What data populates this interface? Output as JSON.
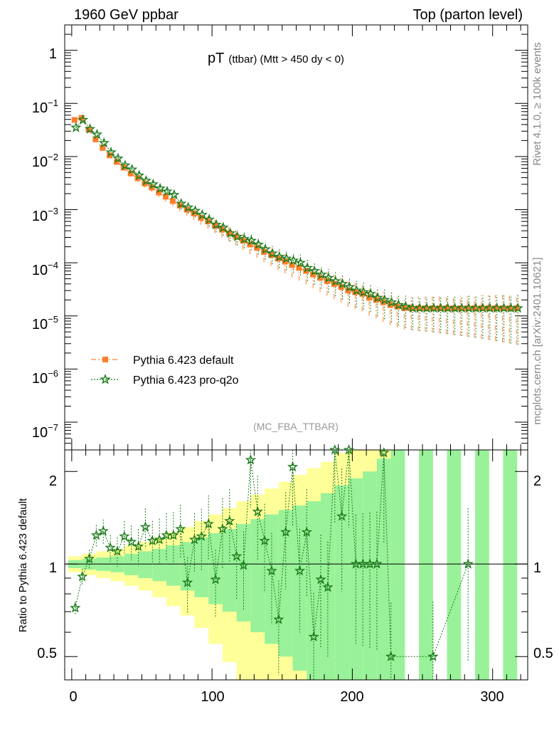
{
  "chart_data": {
    "type": "line",
    "title": "pT",
    "title_sub": "(ttbar) (Mtt > 450 dy < 0)",
    "header_left": "1960 GeV ppbar",
    "header_right": "Top (parton level)",
    "side_label_right_top": "Rivet 4.1.0, ≥ 100k events",
    "side_label_right_bottom": "mcplots.cern.ch [arXiv:2401.10621]",
    "analysis_label": "(MC_FBA_TTBAR)",
    "ratio_ylabel": "Ratio to Pythia 6.423 default",
    "xlim": [
      -5,
      325
    ],
    "ylim": [
      3e-08,
      3
    ],
    "yscale": "log",
    "ratio_ylim": [
      0.42,
      2.35
    ],
    "x_ticks": [
      "0",
      "100",
      "200",
      "300"
    ],
    "y_tick_labels": [
      "1",
      "10",
      "10",
      "10",
      "10",
      "10",
      "10",
      "10"
    ],
    "y_tick_exponents": [
      "",
      "−1",
      "−2",
      "−3",
      "−4",
      "−5",
      "−6",
      "−7"
    ],
    "ratio_tick_labels": [
      "2",
      "1",
      "0.5"
    ],
    "legend": [
      "Pythia 6.423 default",
      "Pythia 6.423 pro-q2o"
    ],
    "colors": {
      "default": "#ff7f2a",
      "pro": "#1a7a1a",
      "band_stat": "#99f299",
      "band_tot": "#ffff99"
    },
    "x": [
      2.5,
      7.5,
      12.5,
      17.5,
      22.5,
      27.5,
      32.5,
      37.5,
      42.5,
      47.5,
      52.5,
      57.5,
      62.5,
      67.5,
      72.5,
      77.5,
      82.5,
      87.5,
      92.5,
      97.5,
      102.5,
      107.5,
      112.5,
      117.5,
      122.5,
      127.5,
      132.5,
      137.5,
      142.5,
      147.5,
      152.5,
      157.5,
      162.5,
      167.5,
      172.5,
      177.5,
      182.5,
      187.5,
      192.5,
      197.5,
      202.5,
      207.5,
      212.5,
      217.5,
      222.5,
      227.5,
      232.5,
      237.5,
      242.5,
      247.5,
      252.5,
      257.5,
      262.5,
      267.5,
      272.5,
      277.5,
      282.5,
      287.5,
      292.5,
      297.5,
      302.5,
      307.5,
      312.5,
      317.5
    ],
    "series": [
      {
        "name": "Pythia 6.423 default",
        "values": [
          0.0488,
          0.0535,
          0.032,
          0.021,
          0.0145,
          0.0105,
          0.0079,
          0.0062,
          0.0048,
          0.0039,
          0.0031,
          0.0026,
          0.0021,
          0.00175,
          0.00145,
          0.0012,
          0.001,
          0.00085,
          0.0007,
          0.0006,
          0.0005,
          0.00042,
          0.00036,
          0.00031,
          0.00026,
          0.00022,
          0.00019,
          0.00016,
          0.00014,
          0.00012,
          0.000105,
          9e-05,
          8e-05,
          7e-05,
          6e-05,
          5.2e-05,
          4.5e-05,
          4e-05,
          3.5e-05,
          3e-05,
          2.8e-05,
          2.6e-05,
          2.2e-05,
          2e-05,
          1.8e-05,
          1.6e-05,
          1.5e-05,
          1.4e-05,
          1.4e-05,
          1.4e-05,
          1.4e-05,
          1.4e-05,
          1.4e-05,
          1.4e-05,
          1.4e-05,
          1.4e-05,
          1.4e-05,
          1.4e-05,
          1.4e-05,
          1.4e-05,
          1.4e-05,
          1.4e-05,
          1.4e-05,
          1.4e-05
        ]
      },
      {
        "name": "Pythia 6.423 pro-q2o",
        "values": [
          0.035,
          0.049,
          0.033,
          0.026,
          0.018,
          0.012,
          0.0092,
          0.0068,
          0.0057,
          0.0044,
          0.0035,
          0.003,
          0.0025,
          0.0022,
          0.0019,
          0.0013,
          0.0011,
          0.00095,
          0.0008,
          0.00065,
          0.00052,
          0.00046,
          0.00036,
          0.00031,
          0.00028,
          0.00026,
          0.00022,
          0.00018,
          0.00015,
          0.00013,
          0.00012,
          0.00011,
          0.0001,
          8e-05,
          7e-05,
          6e-05,
          5.2e-05,
          4.5e-05,
          4e-05,
          3.5e-05,
          3e-05,
          2.8e-05,
          2.6e-05,
          2.2e-05,
          2e-05,
          1.8e-05,
          1.6e-05,
          1.5e-05,
          1.4e-05,
          1.4e-05,
          1.4e-05,
          1.4e-05,
          1.4e-05,
          1.4e-05,
          1.4e-05,
          1.4e-05,
          1.4e-05,
          1.4e-05,
          1.4e-05,
          1.4e-05,
          1.4e-05,
          1.4e-05,
          1.4e-05,
          1.4e-05
        ]
      }
    ],
    "ratio_x": [
      2.5,
      7.5,
      12.5,
      17.5,
      22.5,
      27.5,
      32.5,
      37.5,
      42.5,
      47.5,
      52.5,
      57.5,
      62.5,
      67.5,
      72.5,
      77.5,
      82.5,
      87.5,
      92.5,
      97.5,
      102.5,
      107.5,
      112.5,
      117.5,
      122.5,
      127.5,
      132.5,
      137.5,
      142.5,
      147.5,
      152.5,
      157.5,
      162.5,
      167.5,
      172.5,
      177.5,
      182.5,
      187.5,
      192.5,
      197.5,
      202.5,
      207.5,
      212.5,
      217.5,
      222.5,
      227.5,
      257.5,
      282.5
    ],
    "ratio_values": [
      0.72,
      0.91,
      1.04,
      1.24,
      1.28,
      1.13,
      1.1,
      1.23,
      1.18,
      1.14,
      1.32,
      1.19,
      1.2,
      1.24,
      1.24,
      1.3,
      0.87,
      1.2,
      1.23,
      1.35,
      0.89,
      1.3,
      1.38,
      1.06,
      0.99,
      2.18,
      1.48,
      1.19,
      0.95,
      0.66,
      1.27,
      2.07,
      0.95,
      1.27,
      0.58,
      0.89,
      0.84,
      2.35,
      1.43,
      2.35,
      1.0,
      1.0,
      1.0,
      1.0,
      2.3,
      0.5,
      0.5,
      1.0
    ],
    "ratio_band_x": [
      2.5,
      12.5,
      22.5,
      32.5,
      42.5,
      52.5,
      62.5,
      72.5,
      82.5,
      92.5,
      102.5,
      112.5,
      122.5,
      132.5,
      142.5,
      152.5,
      162.5,
      172.5,
      182.5,
      192.5,
      202.5,
      212.5,
      222.5,
      232.5,
      252.5,
      272.5,
      292.5,
      312.5
    ],
    "ratio_band_stat": [
      0.03,
      0.04,
      0.05,
      0.06,
      0.08,
      0.1,
      0.12,
      0.15,
      0.18,
      0.22,
      0.26,
      0.3,
      0.35,
      0.4,
      0.45,
      0.5,
      0.55,
      0.6,
      0.7,
      0.8,
      0.9,
      1.0,
      1.2,
      1.4,
      1.6,
      1.8,
      2.0,
      2.2
    ],
    "ratio_band_tot": [
      0.06,
      0.08,
      0.1,
      0.12,
      0.15,
      0.18,
      0.22,
      0.27,
      0.32,
      0.38,
      0.45,
      0.52,
      0.6,
      0.68,
      0.76,
      0.85,
      0.95,
      1.05,
      1.15,
      1.3,
      1.45,
      1.6,
      1.8,
      2.0,
      2.2,
      2.4,
      2.6,
      2.8
    ]
  }
}
